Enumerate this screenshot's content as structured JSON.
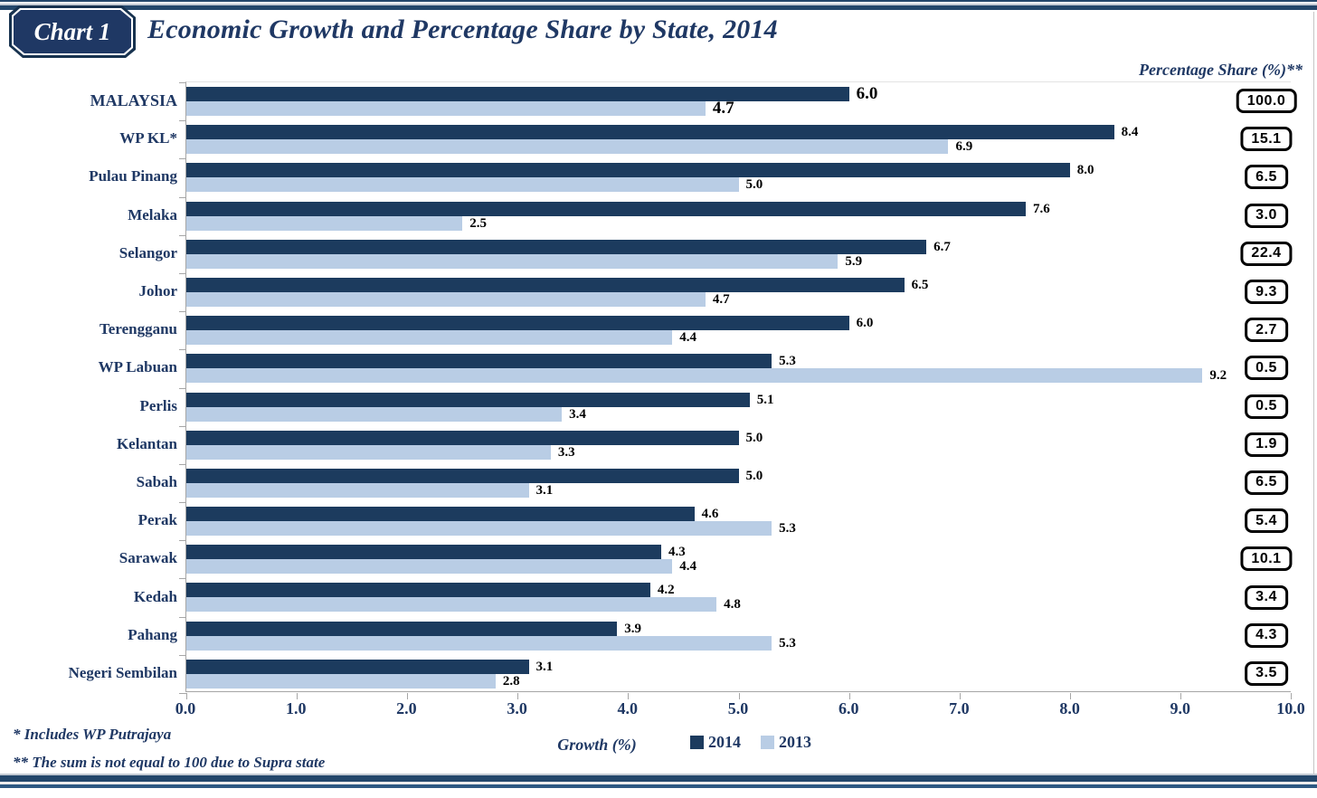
{
  "header": {
    "badge_label": "Chart 1",
    "title": "Economic Growth and Percentage Share by State, 2014"
  },
  "share_column": {
    "header": "Percentage Share (%)**"
  },
  "chart_data": {
    "type": "bar",
    "orientation": "horizontal",
    "title": "Economic Growth and Percentage Share by State, 2014",
    "xlabel": "Growth (%)",
    "xlim": [
      0,
      10
    ],
    "x_ticks": [
      "0.0",
      "1.0",
      "2.0",
      "3.0",
      "4.0",
      "5.0",
      "6.0",
      "7.0",
      "8.0",
      "9.0",
      "10.0"
    ],
    "grid": false,
    "legend_position": "bottom",
    "categories": [
      "MALAYSIA",
      "WP KL*",
      "Pulau Pinang",
      "Melaka",
      "Selangor",
      "Johor",
      "Terengganu",
      "WP Labuan",
      "Perlis",
      "Kelantan",
      "Sabah",
      "Perak",
      "Sarawak",
      "Kedah",
      "Pahang",
      "Negeri Sembilan"
    ],
    "series": [
      {
        "name": "2014",
        "color": "#1C3B5E",
        "values": [
          6.0,
          8.4,
          8.0,
          7.6,
          6.7,
          6.5,
          6.0,
          5.3,
          5.1,
          5.0,
          5.0,
          4.6,
          4.3,
          4.2,
          3.9,
          3.1
        ]
      },
      {
        "name": "2013",
        "color": "#B9CDE5",
        "values": [
          4.7,
          6.9,
          5.0,
          2.5,
          5.9,
          4.7,
          4.4,
          9.2,
          3.4,
          3.3,
          3.1,
          5.3,
          4.4,
          4.8,
          5.3,
          2.8
        ]
      }
    ],
    "percentage_share": [
      100.0,
      15.1,
      6.5,
      3.0,
      22.4,
      9.3,
      2.7,
      0.5,
      0.5,
      1.9,
      6.5,
      5.4,
      10.1,
      3.4,
      4.3,
      3.5
    ]
  },
  "footnotes": [
    "* Includes WP Putrajaya",
    "** The sum is not equal to 100 due to Supra state"
  ],
  "colors": {
    "accent_navy": "#1F3864",
    "bar_2014": "#1C3B5E",
    "bar_2013": "#B9CDE5",
    "axis_gray": "#A6A6A6",
    "box_border": "#000000"
  }
}
